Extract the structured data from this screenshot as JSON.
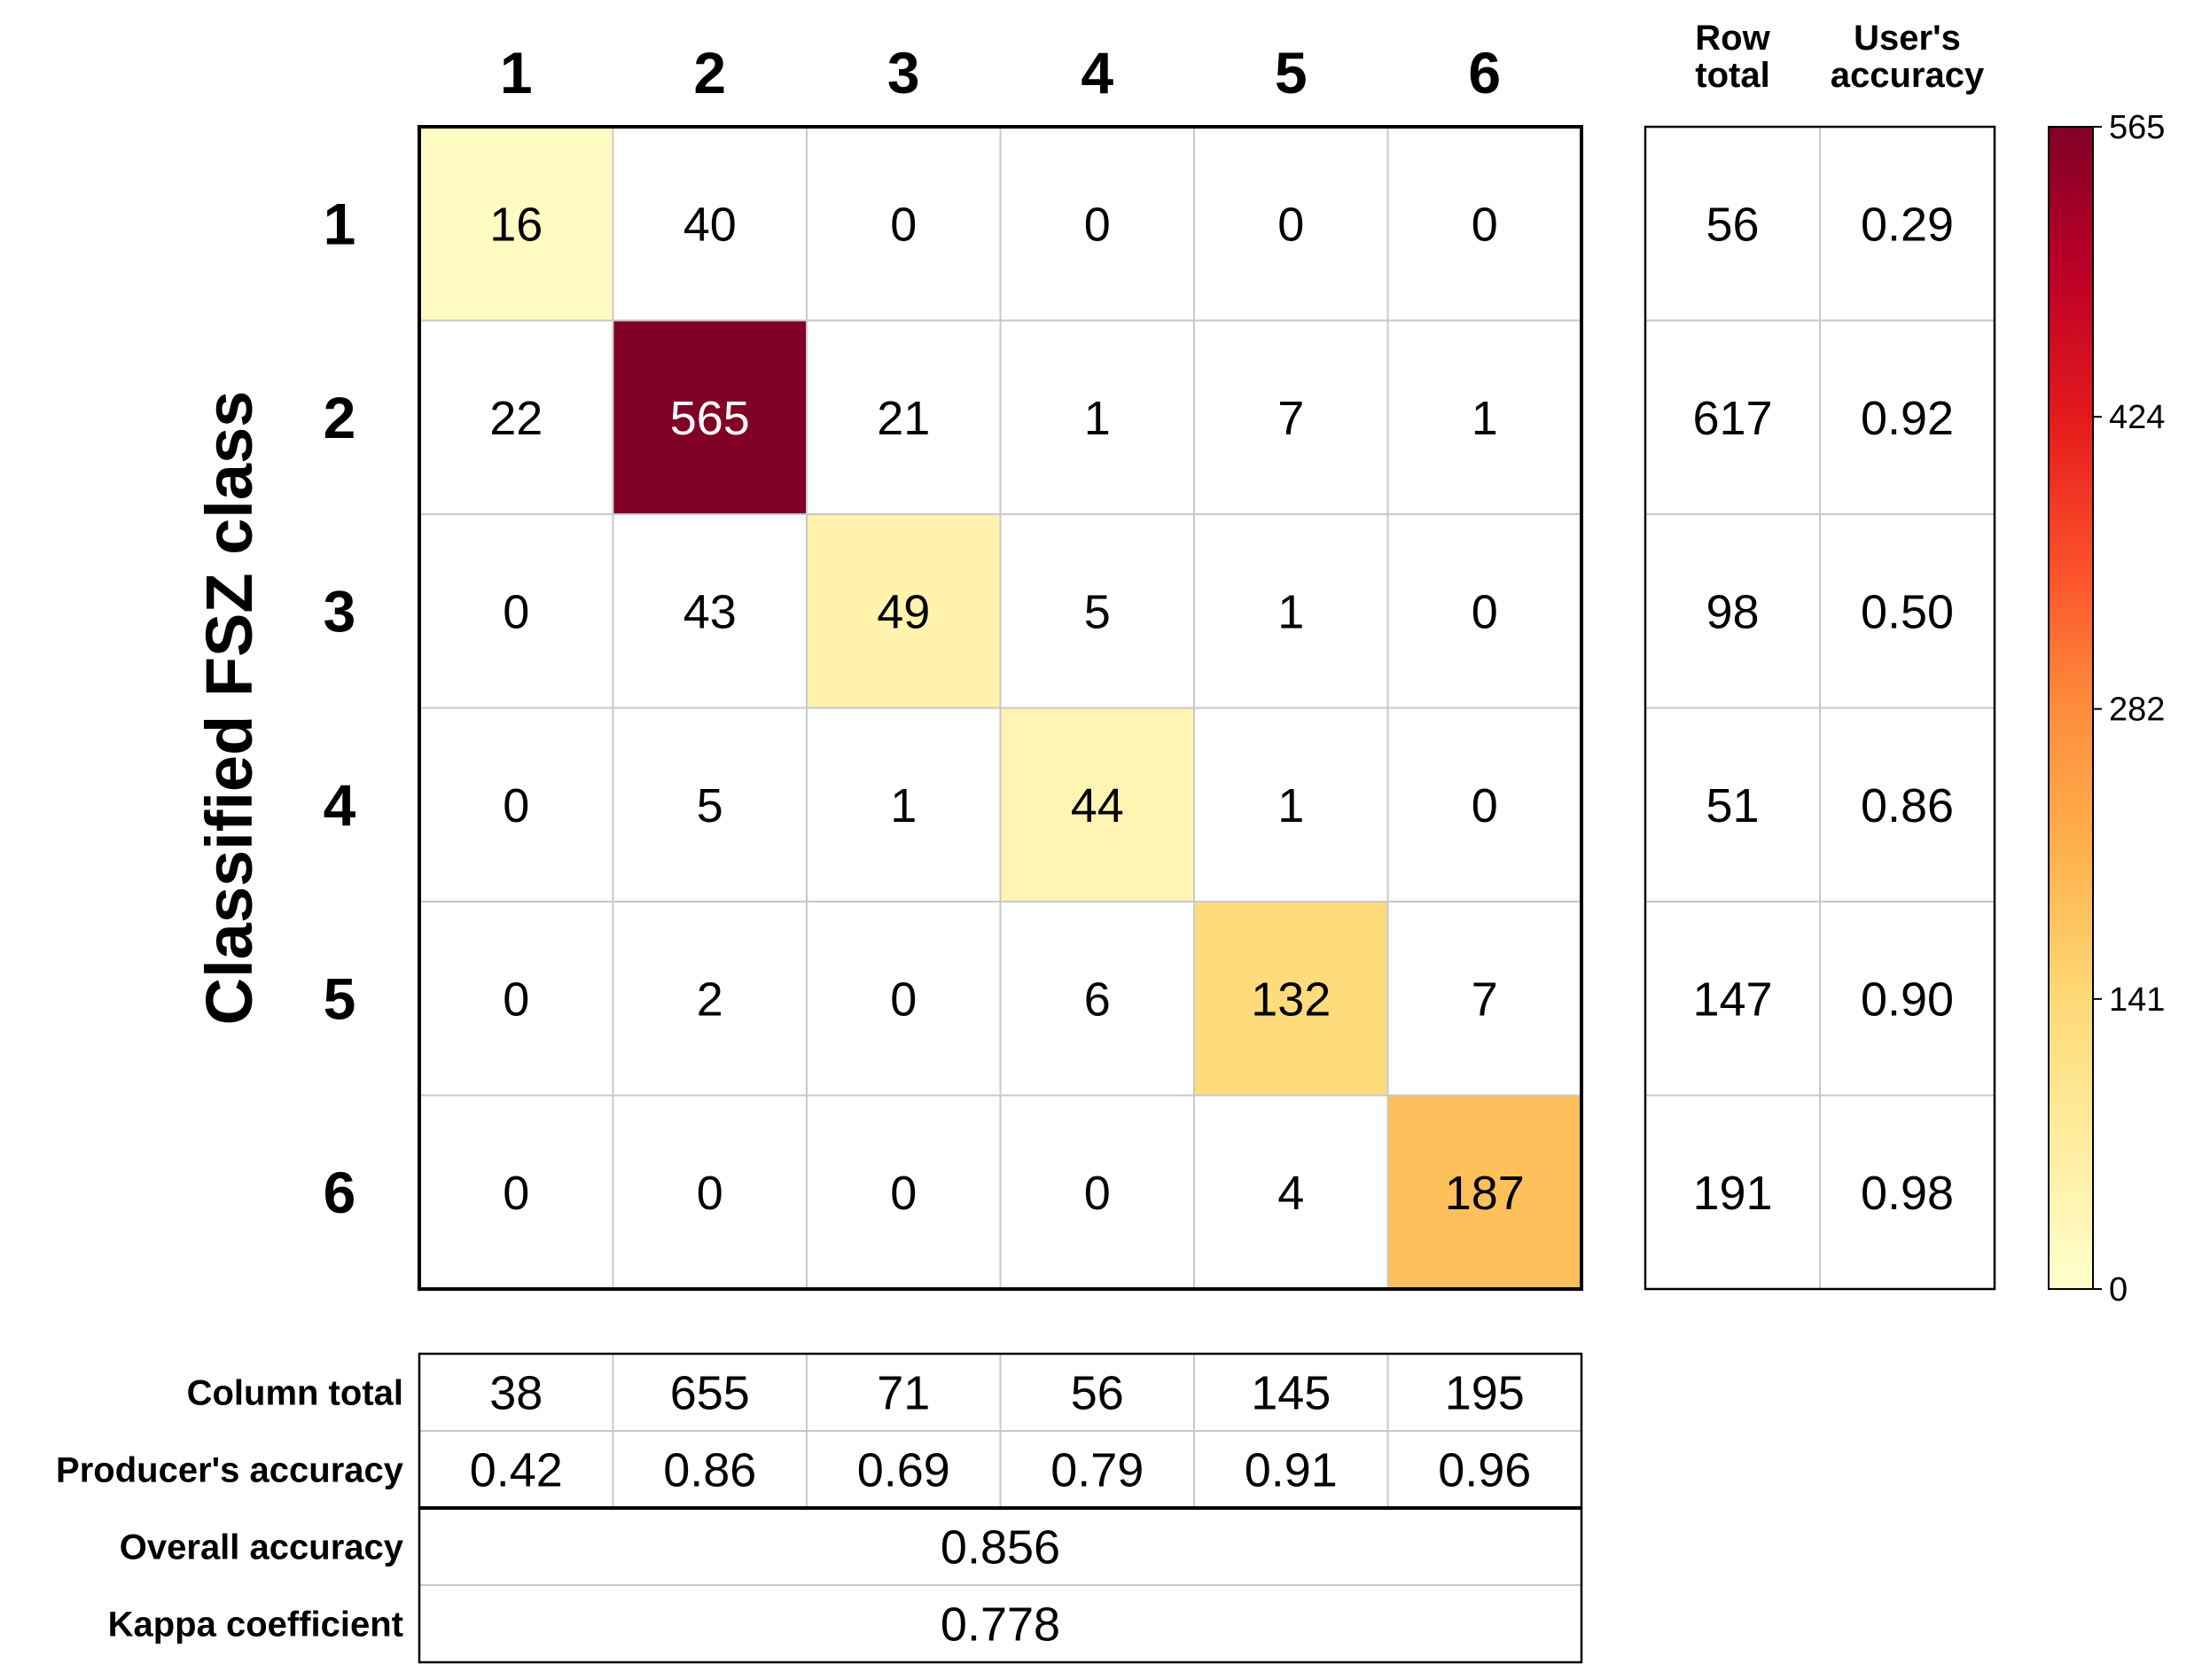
{
  "chart_data": {
    "type": "heatmap",
    "ylabel": "Classified FSZ class",
    "column_labels": [
      "1",
      "2",
      "3",
      "4",
      "5",
      "6"
    ],
    "row_labels": [
      "1",
      "2",
      "3",
      "4",
      "5",
      "6"
    ],
    "matrix": [
      [
        16,
        40,
        0,
        0,
        0,
        0
      ],
      [
        22,
        565,
        21,
        1,
        7,
        1
      ],
      [
        0,
        43,
        49,
        5,
        1,
        0
      ],
      [
        0,
        5,
        1,
        44,
        1,
        0
      ],
      [
        0,
        2,
        0,
        6,
        132,
        7
      ],
      [
        0,
        0,
        0,
        0,
        4,
        187
      ]
    ],
    "row_total_header": [
      "Row",
      "total"
    ],
    "users_accuracy_header": [
      "User's",
      "accuracy"
    ],
    "row_totals": [
      56,
      617,
      98,
      51,
      147,
      191
    ],
    "users_accuracy": [
      "0.29",
      "0.92",
      "0.50",
      "0.86",
      "0.90",
      "0.98"
    ],
    "column_total_label": "Column total",
    "column_totals": [
      38,
      655,
      71,
      56,
      145,
      195
    ],
    "producers_accuracy_label": "Producer's accuracy",
    "producers_accuracy": [
      "0.42",
      "0.86",
      "0.69",
      "0.79",
      "0.91",
      "0.96"
    ],
    "overall_accuracy_label": "Overall accuracy",
    "overall_accuracy": "0.856",
    "kappa_label": "Kappa coefficient",
    "kappa": "0.778",
    "colorbar": {
      "min": 0,
      "max": 565,
      "ticks": [
        0,
        141,
        282,
        424,
        565
      ],
      "colormap": "YlOrRd",
      "colors": [
        "#ffffcc",
        "#ffeda0",
        "#fed976",
        "#feb24c",
        "#fd8d3c",
        "#fc4e2a",
        "#e31a1c",
        "#bd0026",
        "#800026"
      ]
    },
    "only_diagonal_colored": true,
    "off_diagonal_color": "#ffffff",
    "grid_color": "#c8c8c8"
  }
}
